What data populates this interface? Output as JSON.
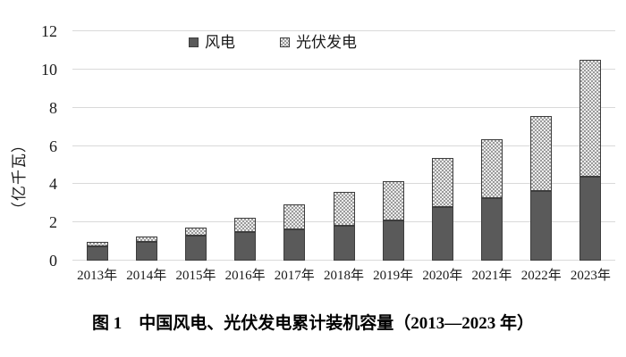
{
  "figure": {
    "caption": "图 1　中国风电、光伏发电累计装机容量（2013—2023 年）"
  },
  "chart_data": {
    "type": "bar",
    "stacked": true,
    "title": "",
    "ylabel": "（亿千瓦）",
    "xlabel": "",
    "ylim": [
      0,
      12
    ],
    "yticks": [
      0,
      2,
      4,
      6,
      8,
      10,
      12
    ],
    "grid": "horizontal",
    "legend_position": "top-center",
    "categories": [
      "2013年",
      "2014年",
      "2015年",
      "2016年",
      "2017年",
      "2018年",
      "2019年",
      "2020年",
      "2021年",
      "2022年",
      "2023年"
    ],
    "series": [
      {
        "key": "wind",
        "name": "风电",
        "values": [
          0.77,
          0.96,
          1.31,
          1.49,
          1.64,
          1.84,
          2.1,
          2.82,
          3.28,
          3.65,
          4.41
        ],
        "color": "#5a5a5a",
        "pattern": "solid"
      },
      {
        "key": "solar",
        "name": "光伏发电",
        "values": [
          0.19,
          0.28,
          0.43,
          0.77,
          1.31,
          1.74,
          2.05,
          2.53,
          3.07,
          3.93,
          6.09
        ],
        "color": "#ececec",
        "pattern": "checker",
        "pattern_color": "#9a9a9a"
      }
    ],
    "colors": {
      "gridline": "#d9d9d9",
      "bar_border": "#3d3d3d",
      "text": "#1a1a1a"
    }
  }
}
